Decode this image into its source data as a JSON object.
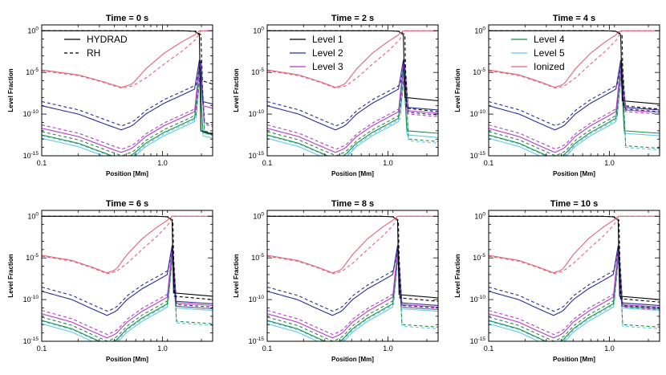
{
  "chart_data": {
    "type": "line",
    "figure_layout": "2x3 grid",
    "xlabel": "Position [Mm]",
    "ylabel": "Level Fraction",
    "xscale": "log",
    "yscale": "log",
    "xlim": [
      0.1,
      2.6
    ],
    "ylim": [
      1e-15,
      5
    ],
    "x_tick_labels": [
      "0.1",
      "1.0"
    ],
    "y_tick_labels": [
      "10^0",
      "10^-5",
      "10^-10",
      "10^-15"
    ],
    "legend_style": {
      "solid": "HYDRAD",
      "dashed": "RH"
    },
    "levels": [
      {
        "name": "Level 1",
        "color": "#000000"
      },
      {
        "name": "Level 2",
        "color": "#2c2c96"
      },
      {
        "name": "Level 3",
        "color": "#b43cc8"
      },
      {
        "name": "Level 4",
        "color": "#1e8c46"
      },
      {
        "name": "Level 5",
        "color": "#64c8e6"
      },
      {
        "name": "Ionized",
        "color": "#e06478"
      }
    ],
    "panels": [
      {
        "title": "Time = 0 s",
        "front_x": 2.02,
        "front_rh_x": 2.08,
        "legend": [
          "HYDRAD",
          "RH"
        ],
        "tail": {
          "solid": [
            -12.0,
            -8.5,
            -9.0,
            -12.2,
            -12.6
          ],
          "dashed": [
            -6.0,
            -11.0,
            -11.2,
            -12.0,
            -12.3
          ]
        }
      },
      {
        "title": "Time = 2 s",
        "front_x": 1.34,
        "front_rh_x": 1.38,
        "legend": [
          "Level 1",
          "Level 2",
          "Level 3"
        ],
        "tail": {
          "solid": [
            -8.0,
            -9.2,
            -9.6,
            -12.0,
            -12.5
          ],
          "dashed": [
            -9.3,
            -9.8,
            -10.0,
            -13.0,
            -13.2
          ]
        }
      },
      {
        "title": "Time = 4 s",
        "front_x": 1.24,
        "front_rh_x": 1.27,
        "legend": [
          "Level 4",
          "Level 5",
          "Ionized"
        ],
        "tail": {
          "solid": [
            -8.4,
            -9.2,
            -9.5,
            -12.0,
            -12.3
          ],
          "dashed": [
            -9.0,
            -9.4,
            -9.7,
            -13.8,
            -14.0
          ]
        }
      },
      {
        "title": "Time = 6 s",
        "front_x": 1.2,
        "front_rh_x": 1.22,
        "legend": [],
        "tail": {
          "solid": [
            -9.2,
            -10.2,
            -10.4,
            -10.8,
            -11.0
          ],
          "dashed": [
            -9.6,
            -10.6,
            -10.8,
            -12.6,
            -12.8
          ]
        }
      },
      {
        "title": "Time = 8 s",
        "front_x": 1.2,
        "front_rh_x": 1.22,
        "legend": [],
        "tail": {
          "solid": [
            -9.4,
            -10.4,
            -10.6,
            -10.9,
            -11.1
          ],
          "dashed": [
            -9.8,
            -10.7,
            -10.9,
            -13.0,
            -13.2
          ]
        }
      },
      {
        "title": "Time = 10 s",
        "front_x": 1.18,
        "front_rh_x": 1.2,
        "legend": [],
        "tail": {
          "solid": [
            -9.6,
            -10.4,
            -10.6,
            -10.8,
            -11.0
          ],
          "dashed": [
            -9.9,
            -10.7,
            -10.9,
            -13.0,
            -13.2
          ]
        }
      }
    ]
  }
}
